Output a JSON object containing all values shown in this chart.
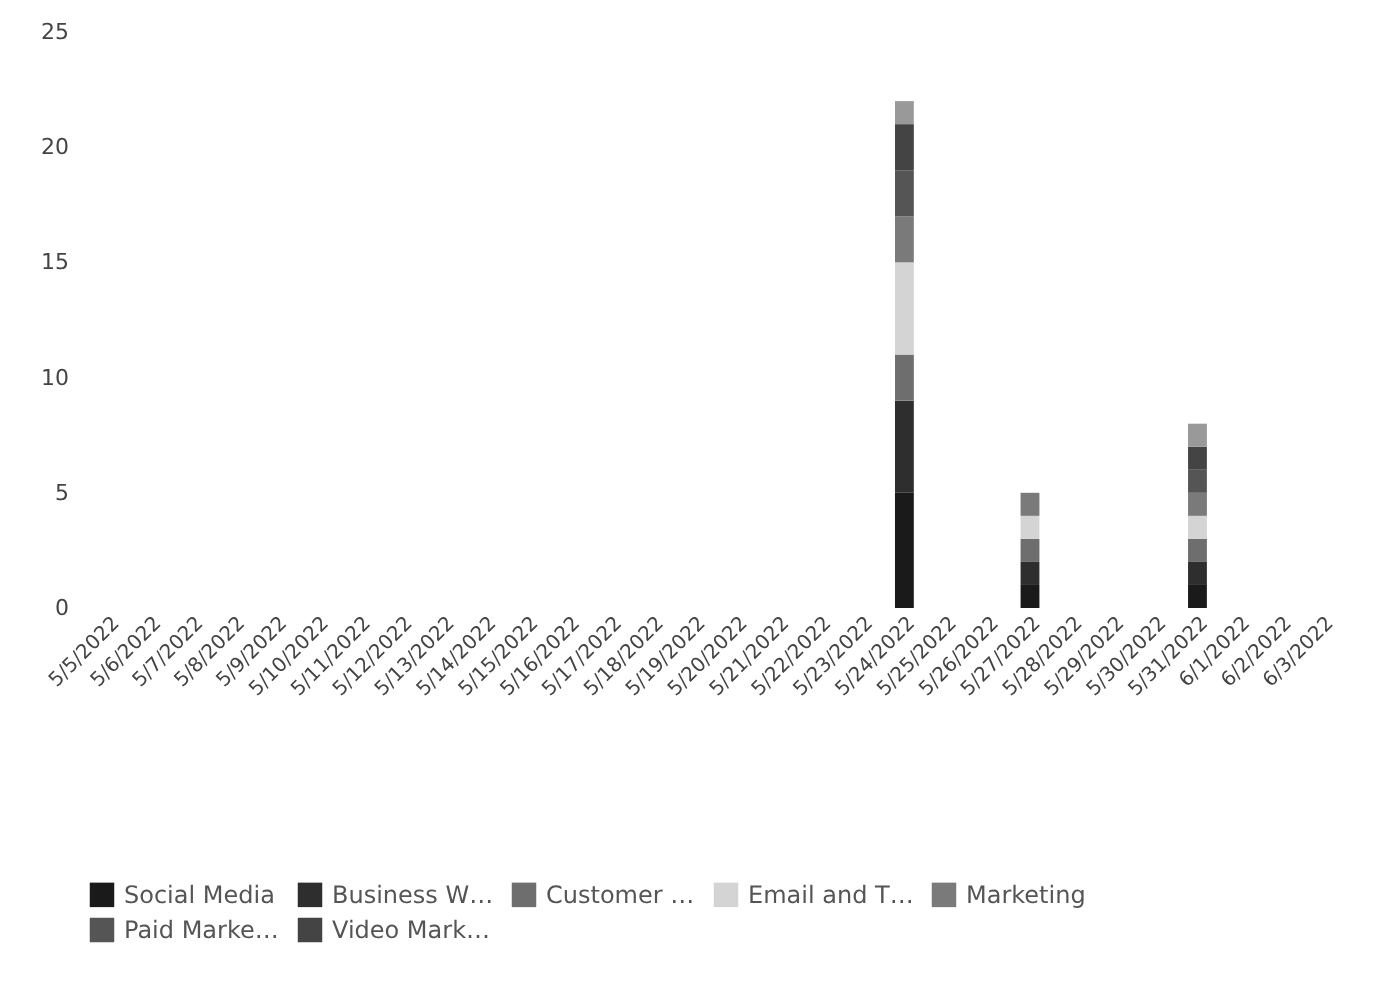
{
  "chart_data": {
    "type": "bar",
    "stacked": true,
    "categories": [
      "5/5/2022",
      "5/6/2022",
      "5/7/2022",
      "5/8/2022",
      "5/9/2022",
      "5/10/2022",
      "5/11/2022",
      "5/12/2022",
      "5/13/2022",
      "5/14/2022",
      "5/15/2022",
      "5/16/2022",
      "5/17/2022",
      "5/18/2022",
      "5/19/2022",
      "5/20/2022",
      "5/21/2022",
      "5/22/2022",
      "5/23/2022",
      "5/24/2022",
      "5/25/2022",
      "5/26/2022",
      "5/27/2022",
      "5/28/2022",
      "5/29/2022",
      "5/30/2022",
      "5/31/2022",
      "6/1/2022",
      "6/2/2022",
      "6/3/2022"
    ],
    "series": [
      {
        "name": "Social Media",
        "color": "#1a1a1a",
        "values": [
          0,
          0,
          0,
          0,
          0,
          0,
          0,
          0,
          0,
          0,
          0,
          0,
          0,
          0,
          0,
          0,
          0,
          0,
          0,
          5,
          0,
          0,
          1,
          0,
          0,
          0,
          1,
          0,
          0,
          0
        ]
      },
      {
        "name": "Business W…",
        "color": "#2e2e2e",
        "values": [
          0,
          0,
          0,
          0,
          0,
          0,
          0,
          0,
          0,
          0,
          0,
          0,
          0,
          0,
          0,
          0,
          0,
          0,
          0,
          4,
          0,
          0,
          1,
          0,
          0,
          0,
          1,
          0,
          0,
          0
        ]
      },
      {
        "name": "Customer …",
        "color": "#6e6e6e",
        "values": [
          0,
          0,
          0,
          0,
          0,
          0,
          0,
          0,
          0,
          0,
          0,
          0,
          0,
          0,
          0,
          0,
          0,
          0,
          0,
          2,
          0,
          0,
          1,
          0,
          0,
          0,
          1,
          0,
          0,
          0
        ]
      },
      {
        "name": "Email and T…",
        "color": "#d4d4d4",
        "values": [
          0,
          0,
          0,
          0,
          0,
          0,
          0,
          0,
          0,
          0,
          0,
          0,
          0,
          0,
          0,
          0,
          0,
          0,
          0,
          4,
          0,
          0,
          1,
          0,
          0,
          0,
          1,
          0,
          0,
          0
        ]
      },
      {
        "name": "Marketing",
        "color": "#7a7a7a",
        "values": [
          0,
          0,
          0,
          0,
          0,
          0,
          0,
          0,
          0,
          0,
          0,
          0,
          0,
          0,
          0,
          0,
          0,
          0,
          0,
          2,
          0,
          0,
          1,
          0,
          0,
          0,
          1,
          0,
          0,
          0
        ]
      },
      {
        "name": "Paid Marke…",
        "color": "#555555",
        "values": [
          0,
          0,
          0,
          0,
          0,
          0,
          0,
          0,
          0,
          0,
          0,
          0,
          0,
          0,
          0,
          0,
          0,
          0,
          0,
          2,
          0,
          0,
          0,
          0,
          0,
          0,
          1,
          0,
          0,
          0
        ]
      },
      {
        "name": "Video Mark…",
        "color": "#444444",
        "values": [
          0,
          0,
          0,
          0,
          0,
          0,
          0,
          0,
          0,
          0,
          0,
          0,
          0,
          0,
          0,
          0,
          0,
          0,
          0,
          2,
          0,
          0,
          0,
          0,
          0,
          0,
          1,
          0,
          0,
          0
        ]
      },
      {
        "color": "#999999",
        "values": [
          0,
          0,
          0,
          0,
          0,
          0,
          0,
          0,
          0,
          0,
          0,
          0,
          0,
          0,
          0,
          0,
          0,
          0,
          0,
          1,
          0,
          0,
          0,
          0,
          0,
          0,
          1,
          0,
          0,
          0
        ]
      }
    ],
    "ylim": [
      0,
      25
    ],
    "yticks": [
      0,
      5,
      10,
      15,
      20,
      25
    ],
    "grid": false,
    "legend": "bottom"
  }
}
